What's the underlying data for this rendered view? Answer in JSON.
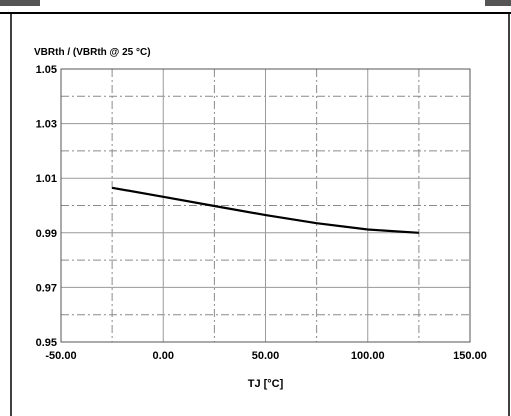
{
  "chart_data": {
    "type": "line",
    "title": "VBRth / (VBRth @ 25 °C)",
    "xlabel": "TJ [°C]",
    "ylabel": "",
    "xlim": [
      -50,
      150
    ],
    "ylim": [
      0.95,
      1.05
    ],
    "x_ticks": [
      "-50.00",
      "0.00",
      "50.00",
      "100.00",
      "150.00"
    ],
    "y_ticks": [
      "0.95",
      "0.97",
      "0.99",
      "1.01",
      "1.03",
      "1.05"
    ],
    "x_tick_values": [
      -50,
      0,
      50,
      100,
      150
    ],
    "y_tick_values": [
      0.95,
      0.97,
      0.99,
      1.01,
      1.03,
      1.05
    ],
    "x_minor_grid": [
      -25,
      25,
      75,
      125
    ],
    "y_minor_grid": [
      0.96,
      0.98,
      1.0,
      1.02,
      1.04
    ],
    "grid": true,
    "series": [
      {
        "x": [
          -25,
          0,
          25,
          50,
          75,
          100,
          125
        ],
        "y": [
          1.0065,
          1.0032,
          0.9998,
          0.9965,
          0.9935,
          0.9912,
          0.99
        ]
      }
    ]
  }
}
